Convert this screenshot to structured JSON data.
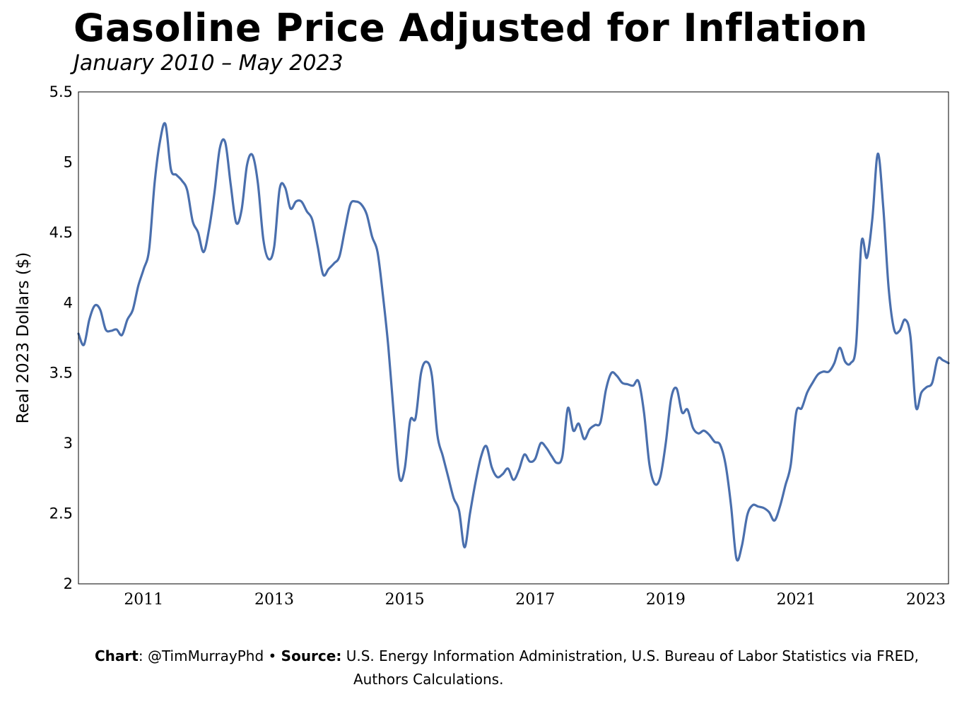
{
  "chart_data": {
    "type": "line",
    "title": "Gasoline Price Adjusted for Inflation",
    "subtitle": "January 2010 – May 2023",
    "ylabel": "Real 2023 Dollars ($)",
    "xlabel": "",
    "ylim": [
      2,
      5.5
    ],
    "xlim": [
      "2010-01",
      "2023-05"
    ],
    "yticks": [
      "2",
      "2.5",
      "3",
      "3.5",
      "4",
      "4.5",
      "5",
      "5.5"
    ],
    "xticks": [
      "2011",
      "2013",
      "2015",
      "2017",
      "2019",
      "2021",
      "2023"
    ],
    "grid": false,
    "line_color": "#4a6fad",
    "x": [
      "2010-01",
      "2010-02",
      "2010-03",
      "2010-04",
      "2010-05",
      "2010-06",
      "2010-07",
      "2010-08",
      "2010-09",
      "2010-10",
      "2010-11",
      "2010-12",
      "2011-01",
      "2011-02",
      "2011-03",
      "2011-04",
      "2011-05",
      "2011-06",
      "2011-07",
      "2011-08",
      "2011-09",
      "2011-10",
      "2011-11",
      "2011-12",
      "2012-01",
      "2012-02",
      "2012-03",
      "2012-04",
      "2012-05",
      "2012-06",
      "2012-07",
      "2012-08",
      "2012-09",
      "2012-10",
      "2012-11",
      "2012-12",
      "2013-01",
      "2013-02",
      "2013-03",
      "2013-04",
      "2013-05",
      "2013-06",
      "2013-07",
      "2013-08",
      "2013-09",
      "2013-10",
      "2013-11",
      "2013-12",
      "2014-01",
      "2014-02",
      "2014-03",
      "2014-04",
      "2014-05",
      "2014-06",
      "2014-07",
      "2014-08",
      "2014-09",
      "2014-10",
      "2014-11",
      "2014-12",
      "2015-01",
      "2015-02",
      "2015-03",
      "2015-04",
      "2015-05",
      "2015-06",
      "2015-07",
      "2015-08",
      "2015-09",
      "2015-10",
      "2015-11",
      "2015-12",
      "2016-01",
      "2016-02",
      "2016-03",
      "2016-04",
      "2016-05",
      "2016-06",
      "2016-07",
      "2016-08",
      "2016-09",
      "2016-10",
      "2016-11",
      "2016-12",
      "2017-01",
      "2017-02",
      "2017-03",
      "2017-04",
      "2017-05",
      "2017-06",
      "2017-07",
      "2017-08",
      "2017-09",
      "2017-10",
      "2017-11",
      "2017-12",
      "2018-01",
      "2018-02",
      "2018-03",
      "2018-04",
      "2018-05",
      "2018-06",
      "2018-07",
      "2018-08",
      "2018-09",
      "2018-10",
      "2018-11",
      "2018-12",
      "2019-01",
      "2019-02",
      "2019-03",
      "2019-04",
      "2019-05",
      "2019-06",
      "2019-07",
      "2019-08",
      "2019-09",
      "2019-10",
      "2019-11",
      "2019-12",
      "2020-01",
      "2020-02",
      "2020-03",
      "2020-04",
      "2020-05",
      "2020-06",
      "2020-07",
      "2020-08",
      "2020-09",
      "2020-10",
      "2020-11",
      "2020-12",
      "2021-01",
      "2021-02",
      "2021-03",
      "2021-04",
      "2021-05",
      "2021-06",
      "2021-07",
      "2021-08",
      "2021-09",
      "2021-10",
      "2021-11",
      "2021-12",
      "2022-01",
      "2022-02",
      "2022-03",
      "2022-04",
      "2022-05",
      "2022-06",
      "2022-07",
      "2022-08",
      "2022-09",
      "2022-10",
      "2022-11",
      "2022-12",
      "2023-01",
      "2023-02",
      "2023-03",
      "2023-04",
      "2023-05"
    ],
    "series": [
      {
        "values": [
          3.78,
          3.7,
          3.88,
          3.98,
          3.95,
          3.81,
          3.8,
          3.81,
          3.77,
          3.88,
          3.95,
          4.12,
          4.24,
          4.38,
          4.85,
          5.15,
          5.27,
          4.95,
          4.91,
          4.87,
          4.8,
          4.58,
          4.5,
          4.36,
          4.52,
          4.78,
          5.1,
          5.14,
          4.84,
          4.57,
          4.66,
          4.98,
          5.05,
          4.85,
          4.45,
          4.31,
          4.4,
          4.81,
          4.82,
          4.67,
          4.72,
          4.72,
          4.65,
          4.59,
          4.4,
          4.2,
          4.24,
          4.28,
          4.33,
          4.52,
          4.7,
          4.72,
          4.7,
          4.63,
          4.47,
          4.36,
          4.05,
          3.68,
          3.2,
          2.76,
          2.82,
          3.16,
          3.18,
          3.5,
          3.58,
          3.48,
          3.06,
          2.91,
          2.76,
          2.61,
          2.52,
          2.26,
          2.5,
          2.72,
          2.9,
          2.98,
          2.83,
          2.76,
          2.78,
          2.82,
          2.74,
          2.81,
          2.92,
          2.87,
          2.89,
          3.0,
          2.97,
          2.91,
          2.86,
          2.91,
          3.25,
          3.09,
          3.14,
          3.03,
          3.1,
          3.13,
          3.15,
          3.38,
          3.5,
          3.48,
          3.43,
          3.42,
          3.41,
          3.44,
          3.22,
          2.85,
          2.71,
          2.76,
          3.0,
          3.32,
          3.39,
          3.22,
          3.24,
          3.11,
          3.07,
          3.09,
          3.06,
          3.01,
          2.99,
          2.85,
          2.56,
          2.18,
          2.27,
          2.49,
          2.56,
          2.55,
          2.54,
          2.51,
          2.45,
          2.55,
          2.7,
          2.85,
          3.22,
          3.25,
          3.36,
          3.43,
          3.49,
          3.51,
          3.51,
          3.57,
          3.68,
          3.58,
          3.57,
          3.7,
          4.43,
          4.32,
          4.6,
          5.06,
          4.68,
          4.1,
          3.81,
          3.8,
          3.88,
          3.76,
          3.26,
          3.36,
          3.4,
          3.43,
          3.6,
          3.59,
          3.57
        ]
      }
    ]
  },
  "footer": {
    "chart_label": "Chart",
    "chart_sep": ":",
    "chart_author": "@TimMurrayPhd",
    "bullet": "•",
    "source_label": "Source:",
    "source_text_line1": "U.S. Energy Information Administration, U.S. Bureau of Labor Statistics via FRED,",
    "source_text_line2": "Authors Calculations."
  }
}
